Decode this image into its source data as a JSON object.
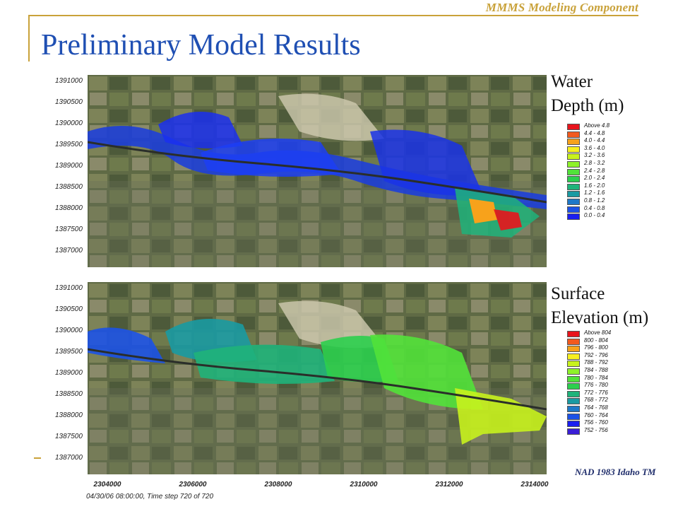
{
  "header": {
    "tag": "MMMS Modeling Component"
  },
  "title": "Preliminary Model Results",
  "maps": {
    "y_ticks": [
      "1391000",
      "1390500",
      "1390000",
      "1389500",
      "1389000",
      "1388500",
      "1388000",
      "1387500",
      "1387000"
    ],
    "x_ticks": [
      "2304000",
      "2306000",
      "2308000",
      "2310000",
      "2312000",
      "2314000"
    ],
    "timestep_text": "04/30/06 08:00:00, Time step 720 of 720",
    "datum": "NAD 1983 Idaho TM"
  },
  "legend_depth": {
    "title_line1": "Water",
    "title_line2": "Depth (m)",
    "items": [
      {
        "label": "Above  4.8",
        "color": "#e8141c"
      },
      {
        "label": "4.4 -  4.8",
        "color": "#f25a1e"
      },
      {
        "label": "4.0 -  4.4",
        "color": "#f7a21b"
      },
      {
        "label": "3.6 -  4.0",
        "color": "#f7ef1f"
      },
      {
        "label": "3.2 -  3.6",
        "color": "#c8f21d"
      },
      {
        "label": "2.8 -  3.2",
        "color": "#8ef22a"
      },
      {
        "label": "2.4 -  2.8",
        "color": "#52e23a"
      },
      {
        "label": "2.0 -  2.4",
        "color": "#2ccf4e"
      },
      {
        "label": "1.6 -  2.0",
        "color": "#1fb37a"
      },
      {
        "label": "1.2 -  1.6",
        "color": "#1a9aa2"
      },
      {
        "label": "0.8 -  1.2",
        "color": "#1f78c8"
      },
      {
        "label": "0.4 -  0.8",
        "color": "#1c52e6"
      },
      {
        "label": "0.0 -  0.4",
        "color": "#1a1ef0"
      }
    ]
  },
  "legend_elev": {
    "title_line1": "Surface",
    "title_line2": "Elevation (m)",
    "items": [
      {
        "label": "Above 804",
        "color": "#e8141c"
      },
      {
        "label": "800 - 804",
        "color": "#f25a1e"
      },
      {
        "label": "796 - 800",
        "color": "#f7a21b"
      },
      {
        "label": "792 - 796",
        "color": "#f7ef1f"
      },
      {
        "label": "788 - 792",
        "color": "#c8f21d"
      },
      {
        "label": "784 - 788",
        "color": "#8ef22a"
      },
      {
        "label": "780 - 784",
        "color": "#52e23a"
      },
      {
        "label": "776 - 780",
        "color": "#2ccf4e"
      },
      {
        "label": "772 - 776",
        "color": "#1fb37a"
      },
      {
        "label": "768 - 772",
        "color": "#1a9aa2"
      },
      {
        "label": "764 - 768",
        "color": "#1f78c8"
      },
      {
        "label": "760 - 764",
        "color": "#1c52e6"
      },
      {
        "label": "756 - 760",
        "color": "#1a1ef0"
      },
      {
        "label": "752 - 756",
        "color": "#3a1fd6"
      }
    ]
  }
}
